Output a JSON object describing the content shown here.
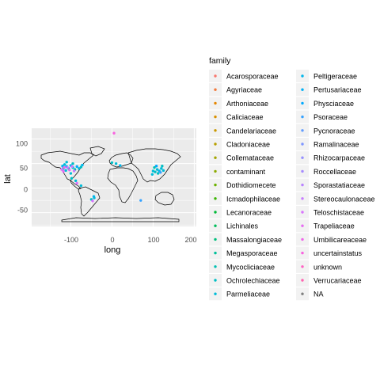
{
  "chart_data": {
    "type": "scatter",
    "subtype": "map",
    "xlabel": "long",
    "ylabel": "lat",
    "xlim": [
      -195,
      205
    ],
    "ylim": [
      -78,
      122
    ],
    "x_ticks": [
      -100,
      0,
      100,
      200
    ],
    "x_tick_labels": [
      "-100",
      "0",
      "100",
      "200"
    ],
    "y_ticks": [
      -50,
      0,
      50,
      100
    ],
    "y_tick_labels": [
      "-50",
      "0",
      "50",
      "100"
    ],
    "grid": true,
    "panel_background": "#ebebeb",
    "legend": {
      "title": "family",
      "placement": "right",
      "columns": 2,
      "entries": [
        {
          "label": "Acarosporaceae",
          "color": "#F8766D"
        },
        {
          "label": "Agyriaceae",
          "color": "#F2793B"
        },
        {
          "label": "Arthoniaceae",
          "color": "#E58700"
        },
        {
          "label": "Caliciaceae",
          "color": "#D89000"
        },
        {
          "label": "Candelariaceae",
          "color": "#C99800"
        },
        {
          "label": "Cladoniaceae",
          "color": "#B79F00"
        },
        {
          "label": "Collemataceae",
          "color": "#A3A500"
        },
        {
          "label": "contaminant",
          "color": "#8CAB00"
        },
        {
          "label": "Dothidiomecete",
          "color": "#6BB100"
        },
        {
          "label": "Icmadophilaceae",
          "color": "#39B600"
        },
        {
          "label": "Lecanoraceae",
          "color": "#00BA38"
        },
        {
          "label": "Lichinales",
          "color": "#00BD5C"
        },
        {
          "label": "Massalongiaceae",
          "color": "#00BF7D"
        },
        {
          "label": "Megasporaceae",
          "color": "#00C099"
        },
        {
          "label": "Mycocliciaceae",
          "color": "#00C0B2"
        },
        {
          "label": "Ochrolechiaceae",
          "color": "#00BFC4"
        },
        {
          "label": "Parmeliaceae",
          "color": "#00BCD8"
        },
        {
          "label": "Peltigeraceae",
          "color": "#00B6EB"
        },
        {
          "label": "Pertusariaceae",
          "color": "#00B0F6"
        },
        {
          "label": "Physciaceae",
          "color": "#00A9FF"
        },
        {
          "label": "Psoraceae",
          "color": "#35A2FF"
        },
        {
          "label": "Pycnoraceae",
          "color": "#619CFF"
        },
        {
          "label": "Ramalinaceae",
          "color": "#7E96FF"
        },
        {
          "label": "Rhizocarpaceae",
          "color": "#9590FF"
        },
        {
          "label": "Roccellaceae",
          "color": "#A58AFF"
        },
        {
          "label": "Sporastatiaceae",
          "color": "#B983FF"
        },
        {
          "label": "Stereocaulonaceae",
          "color": "#C77CFF"
        },
        {
          "label": "Teloschistaceae",
          "color": "#D874FD"
        },
        {
          "label": "Trapeliaceae",
          "color": "#E76BF3"
        },
        {
          "label": "Umbilicareaceae",
          "color": "#F066EA"
        },
        {
          "label": "uncertainstatus",
          "color": "#F863DF"
        },
        {
          "label": "unknown",
          "color": "#FF61C3"
        },
        {
          "label": "Verrucariaceae",
          "color": "#FF64B0"
        },
        {
          "label": "NA",
          "color": "#7F7F7F"
        }
      ]
    },
    "points": [
      {
        "long": 5,
        "lat": 112,
        "family": "uncertainstatus"
      },
      {
        "long": 70,
        "lat": -25,
        "family": "Psoraceae"
      },
      {
        "long": -120,
        "lat": 45,
        "family": "Peltigeraceae"
      },
      {
        "long": -118,
        "lat": 40,
        "family": "Ochrolechiaceae"
      },
      {
        "long": -115,
        "lat": 48,
        "family": "Parmeliaceae"
      },
      {
        "long": -110,
        "lat": 44,
        "family": "Physciaceae"
      },
      {
        "long": -112,
        "lat": 36,
        "family": "Parmeliaceae"
      },
      {
        "long": -105,
        "lat": 40,
        "family": "Ochrolechiaceae"
      },
      {
        "long": -100,
        "lat": 46,
        "family": "Peltigeraceae"
      },
      {
        "long": -95,
        "lat": 42,
        "family": "Parmeliaceae"
      },
      {
        "long": -90,
        "lat": 38,
        "family": "Mycocliciaceae"
      },
      {
        "long": -85,
        "lat": 44,
        "family": "Physciaceae"
      },
      {
        "long": -80,
        "lat": 40,
        "family": "Parmeliaceae"
      },
      {
        "long": -75,
        "lat": 43,
        "family": "Ochrolechiaceae"
      },
      {
        "long": -122,
        "lat": 38,
        "family": "Teloschistaceae"
      },
      {
        "long": -118,
        "lat": 34,
        "family": "Trapeliaceae"
      },
      {
        "long": -116,
        "lat": 42,
        "family": "Umbilicareaceae"
      },
      {
        "long": -108,
        "lat": 42,
        "family": "Teloschistaceae"
      },
      {
        "long": -103,
        "lat": 37,
        "family": "Trapeliaceae"
      },
      {
        "long": -97,
        "lat": 44,
        "family": "Teloschistaceae"
      },
      {
        "long": -92,
        "lat": 35,
        "family": "Stereocaulonaceae"
      },
      {
        "long": -100,
        "lat": 30,
        "family": "Parmeliaceae"
      },
      {
        "long": -98,
        "lat": 20,
        "family": "Ochrolechiaceae"
      },
      {
        "long": -88,
        "lat": 15,
        "family": "Parmeliaceae"
      },
      {
        "long": -95,
        "lat": 50,
        "family": "Ochrolechiaceae"
      },
      {
        "long": -110,
        "lat": 53,
        "family": "Parmeliaceae"
      },
      {
        "long": -72,
        "lat": 47,
        "family": "Peltigeraceae"
      },
      {
        "long": -85,
        "lat": 10,
        "family": "Teloschistaceae"
      },
      {
        "long": -75,
        "lat": 5,
        "family": "Parmeliaceae"
      },
      {
        "long": -43,
        "lat": -20,
        "family": "Parmeliaceae"
      },
      {
        "long": -50,
        "lat": -23,
        "family": "Ochrolechiaceae"
      },
      {
        "long": -47,
        "lat": -26,
        "family": "Teloschistaceae"
      },
      {
        "long": -44,
        "lat": -17,
        "family": "Peltigeraceae"
      },
      {
        "long": 10,
        "lat": 50,
        "family": "Parmeliaceae"
      },
      {
        "long": 0,
        "lat": 52,
        "family": "Ochrolechiaceae"
      },
      {
        "long": 20,
        "lat": 46,
        "family": "Peltigeraceae"
      },
      {
        "long": 100,
        "lat": 35,
        "family": "Parmeliaceae"
      },
      {
        "long": 105,
        "lat": 33,
        "family": "Ochrolechiaceae"
      },
      {
        "long": 110,
        "lat": 38,
        "family": "Parmeliaceae"
      },
      {
        "long": 115,
        "lat": 35,
        "family": "Peltigeraceae"
      },
      {
        "long": 120,
        "lat": 40,
        "family": "Parmeliaceae"
      },
      {
        "long": 103,
        "lat": 42,
        "family": "Mycocliciaceae"
      },
      {
        "long": 112,
        "lat": 30,
        "family": "Ochrolechiaceae"
      },
      {
        "long": 125,
        "lat": 36,
        "family": "Parmeliaceae"
      },
      {
        "long": 108,
        "lat": 45,
        "family": "Physciaceae"
      },
      {
        "long": 98,
        "lat": 28,
        "family": "Parmeliaceae"
      },
      {
        "long": 118,
        "lat": 32,
        "family": "Psoraceae"
      },
      {
        "long": 122,
        "lat": 45,
        "family": "Ochrolechiaceae"
      }
    ]
  }
}
